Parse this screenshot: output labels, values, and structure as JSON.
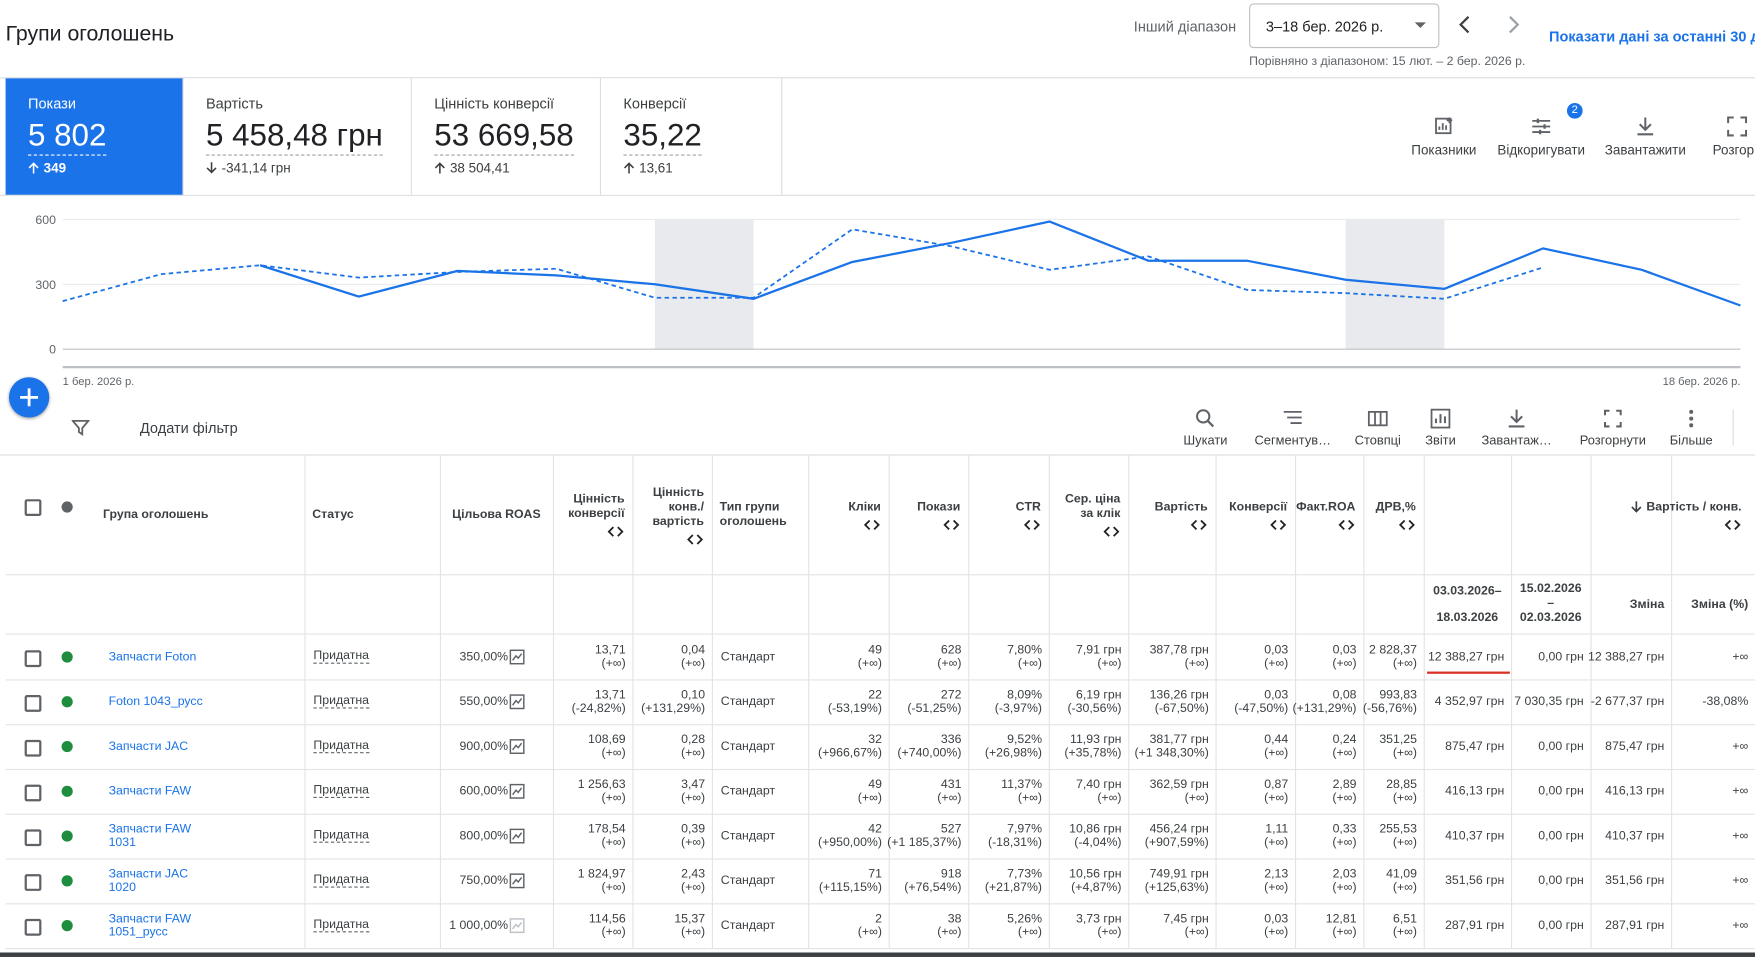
{
  "header": {
    "title": "Групи оголошень",
    "range_label": "Інший діапазон",
    "range": "3–18 бер. 2026 р.",
    "compare": "Порівняно з діапазоном: 15 лют. – 2 бер. 2026 р.",
    "last30": "Показати дані за останні 30 д"
  },
  "metrics": [
    {
      "label": "Покази",
      "value": "5 802",
      "delta": "349"
    },
    {
      "label": "Вартість",
      "value": "5 458,48 грн",
      "delta": "-341,14 грн"
    },
    {
      "label": "Цінність конверсії",
      "value": "53 669,58",
      "delta": "38 504,41"
    },
    {
      "label": "Конверсії",
      "value": "35,22",
      "delta": "13,61"
    }
  ],
  "actions": [
    "Показники",
    "Відкоригувати",
    "Завантажити",
    "Розгорн"
  ],
  "actions_badge": "2",
  "chart_data": {
    "type": "line",
    "x": [
      "1 бер. 2026 р.",
      null,
      null,
      null,
      null,
      null,
      null,
      null,
      null,
      null,
      null,
      null,
      null,
      null,
      null,
      null,
      null,
      "18 бер. 2026 р."
    ],
    "ylim": [
      0,
      600
    ],
    "yticks": [
      0,
      300,
      600
    ],
    "grid": true,
    "series": [
      {
        "color": "#1a73e8",
        "style": "solid",
        "values": [
          null,
          null,
          388,
          243,
          362,
          341,
          300,
          233,
          403,
          491,
          590,
          409,
          409,
          321,
          279,
          466,
          367,
          202
        ]
      },
      {
        "color": "#1a73e8",
        "style": "dashed",
        "values": [
          222,
          347,
          388,
          331,
          357,
          372,
          238,
          238,
          554,
          476,
          367,
          429,
          274,
          259,
          233,
          378,
          null,
          null
        ]
      }
    ]
  },
  "add_filter": "Додати фільтр",
  "tools": [
    "Шукати",
    "Сегментув…",
    "Стовпці",
    "Звіти",
    "Завантаж…",
    "Розгорнути",
    "Більше"
  ],
  "table": {
    "columns": [
      "Група оголошень",
      "Статус",
      "Цільова ROAS",
      "Цінність конверсії",
      "Цінність конв./ вартість",
      "Тип групи оголошень",
      "Кліки",
      "Покази",
      "CTR",
      "Сер. ціна за клік",
      "Вартість",
      "Конверсії",
      "Факт.ROA",
      "ДРВ,%"
    ],
    "group_header": "Вартість / конв.",
    "subcolumns": [
      "03.03.2026– 18.03.2026",
      "15.02.2026 – 02.03.2026",
      "Зміна",
      "Зміна (%)"
    ],
    "rows": [
      {
        "name": "Запчасти Foton",
        "status": "Придатна",
        "roas": "350,00%",
        "cells": [
          [
            "13,71",
            "(+∞)"
          ],
          [
            "0,04",
            "(+∞)"
          ],
          "Стандарт",
          [
            "49",
            "(+∞)"
          ],
          [
            "628",
            "(+∞)"
          ],
          [
            "7,80%",
            "(+∞)"
          ],
          [
            "7,91 грн",
            "(+∞)"
          ],
          [
            "387,78 грн",
            "(+∞)"
          ],
          [
            "0,03",
            "(+∞)"
          ],
          [
            "0,03",
            "(+∞)"
          ],
          [
            "2 828,37",
            "(+∞)"
          ]
        ],
        "cost_conv": [
          "12 388,27 грн",
          "0,00 грн",
          "12 388,27 грн",
          "+∞"
        ]
      },
      {
        "name": "Foton 1043_русс",
        "status": "Придатна",
        "roas": "550,00%",
        "cells": [
          [
            "13,71",
            "(-24,82%)"
          ],
          [
            "0,10",
            "(+131,29%)"
          ],
          "Стандарт",
          [
            "22",
            "(-53,19%)"
          ],
          [
            "272",
            "(-51,25%)"
          ],
          [
            "8,09%",
            "(-3,97%)"
          ],
          [
            "6,19 грн",
            "(-30,56%)"
          ],
          [
            "136,26 грн",
            "(-67,50%)"
          ],
          [
            "0,03",
            "(-47,50%)"
          ],
          [
            "0,08",
            "(+131,29%)"
          ],
          [
            "993,83",
            "(-56,76%)"
          ]
        ],
        "cost_conv": [
          "4 352,97 грн",
          "7 030,35 грн",
          "-2 677,37 грн",
          "-38,08%"
        ]
      },
      {
        "name": "Запчасти JAC",
        "status": "Придатна",
        "roas": "900,00%",
        "cells": [
          [
            "108,69",
            "(+∞)"
          ],
          [
            "0,28",
            "(+∞)"
          ],
          "Стандарт",
          [
            "32",
            "(+966,67%)"
          ],
          [
            "336",
            "(+740,00%)"
          ],
          [
            "9,52%",
            "(+26,98%)"
          ],
          [
            "11,93 грн",
            "(+35,78%)"
          ],
          [
            "381,77 грн",
            "(+1 348,30%)"
          ],
          [
            "0,44",
            "(+∞)"
          ],
          [
            "0,24",
            "(+∞)"
          ],
          [
            "351,25",
            "(+∞)"
          ]
        ],
        "cost_conv": [
          "875,47 грн",
          "0,00 грн",
          "875,47 грн",
          "+∞"
        ]
      },
      {
        "name": "Запчасти FAW",
        "status": "Придатна",
        "roas": "600,00%",
        "cells": [
          [
            "1 256,63",
            "(+∞)"
          ],
          [
            "3,47",
            "(+∞)"
          ],
          "Стандарт",
          [
            "49",
            "(+∞)"
          ],
          [
            "431",
            "(+∞)"
          ],
          [
            "11,37%",
            "(+∞)"
          ],
          [
            "7,40 грн",
            "(+∞)"
          ],
          [
            "362,59 грн",
            "(+∞)"
          ],
          [
            "0,87",
            "(+∞)"
          ],
          [
            "2,89",
            "(+∞)"
          ],
          [
            "28,85",
            "(+∞)"
          ]
        ],
        "cost_conv": [
          "416,13 грн",
          "0,00 грн",
          "416,13 грн",
          "+∞"
        ]
      },
      {
        "name": "Запчасти FAW 1031",
        "status": "Придатна",
        "roas": "800,00%",
        "cells": [
          [
            "178,54",
            "(+∞)"
          ],
          [
            "0,39",
            "(+∞)"
          ],
          "Стандарт",
          [
            "42",
            "(+950,00%)"
          ],
          [
            "527",
            "(+1 185,37%)"
          ],
          [
            "7,97%",
            "(-18,31%)"
          ],
          [
            "10,86 грн",
            "(-4,04%)"
          ],
          [
            "456,24 грн",
            "(+907,59%)"
          ],
          [
            "1,11",
            "(+∞)"
          ],
          [
            "0,33",
            "(+∞)"
          ],
          [
            "255,53",
            "(+∞)"
          ]
        ],
        "cost_conv": [
          "410,37 грн",
          "0,00 грн",
          "410,37 грн",
          "+∞"
        ]
      },
      {
        "name": "Запчасти JAC 1020",
        "status": "Придатна",
        "roas": "750,00%",
        "cells": [
          [
            "1 824,97",
            "(+∞)"
          ],
          [
            "2,43",
            "(+∞)"
          ],
          "Стандарт",
          [
            "71",
            "(+115,15%)"
          ],
          [
            "918",
            "(+76,54%)"
          ],
          [
            "7,73%",
            "(+21,87%)"
          ],
          [
            "10,56 грн",
            "(+4,87%)"
          ],
          [
            "749,91 грн",
            "(+125,63%)"
          ],
          [
            "2,13",
            "(+∞)"
          ],
          [
            "2,03",
            "(+∞)"
          ],
          [
            "41,09",
            "(+∞)"
          ]
        ],
        "cost_conv": [
          "351,56 грн",
          "0,00 грн",
          "351,56 грн",
          "+∞"
        ]
      },
      {
        "name": "Запчасти FAW 1051_русс",
        "status": "Придатна",
        "roas": "1 000,00%",
        "cells": [
          [
            "114,56",
            "(+∞)"
          ],
          [
            "15,37",
            "(+∞)"
          ],
          "Стандарт",
          [
            "2",
            "(+∞)"
          ],
          [
            "38",
            "(+∞)"
          ],
          [
            "5,26%",
            "(+∞)"
          ],
          [
            "3,73 грн",
            "(+∞)"
          ],
          [
            "7,45 грн",
            "(+∞)"
          ],
          [
            "0,03",
            "(+∞)"
          ],
          [
            "12,81",
            "(+∞)"
          ],
          [
            "6,51",
            "(+∞)"
          ]
        ],
        "cost_conv": [
          "287,91 грн",
          "0,00 грн",
          "287,91 грн",
          "+∞"
        ]
      }
    ]
  }
}
